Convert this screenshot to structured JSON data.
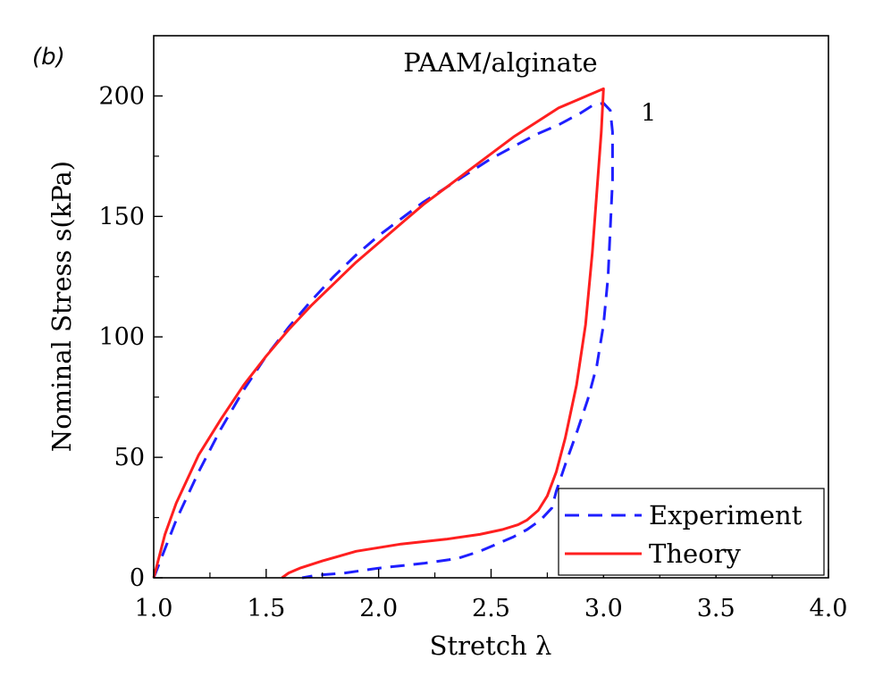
{
  "panel_label": "(b)",
  "chart_data": {
    "type": "line",
    "title": "PAAM/alginate",
    "xlabel": "Stretch λ",
    "ylabel": "Nominal Stress s(kPa)",
    "xlim": [
      1.0,
      4.0
    ],
    "ylim": [
      0,
      225
    ],
    "xticks": [
      1.0,
      1.5,
      2.0,
      2.5,
      3.0,
      3.5,
      4.0
    ],
    "xtick_labels": [
      "1.0",
      "1.5",
      "2.0",
      "2.5",
      "3.0",
      "3.5",
      "4.0"
    ],
    "yticks": [
      0,
      50,
      100,
      150,
      200
    ],
    "ytick_labels": [
      "0",
      "50",
      "100",
      "150",
      "200"
    ],
    "grid": false,
    "legend_position": "bottom-right",
    "annotations": [
      {
        "text": "1",
        "x": 3.2,
        "y": 193
      }
    ],
    "series": [
      {
        "name": "Experiment",
        "color": "#1f1fff",
        "style": "dashed",
        "x": [
          1.0,
          1.05,
          1.1,
          1.2,
          1.3,
          1.4,
          1.5,
          1.6,
          1.7,
          1.8,
          1.9,
          2.0,
          2.1,
          2.2,
          2.3,
          2.4,
          2.5,
          2.6,
          2.7,
          2.8,
          2.9,
          2.95,
          3.0,
          3.03,
          3.04,
          3.04,
          3.03,
          3.02,
          3.0,
          2.97,
          2.93,
          2.88,
          2.83,
          2.79,
          2.77,
          2.72,
          2.66,
          2.6,
          2.55,
          2.45,
          2.35,
          2.2,
          2.0,
          1.85,
          1.72,
          1.66
        ],
        "y": [
          0,
          12,
          24,
          44,
          62,
          78,
          92,
          104,
          115,
          125,
          134,
          142,
          149,
          156,
          162,
          168,
          174,
          179,
          184,
          188,
          193,
          196,
          197,
          194,
          185,
          165,
          145,
          125,
          105,
          88,
          74,
          60,
          47,
          36,
          29,
          24,
          20,
          17,
          15,
          11,
          8,
          6,
          4,
          2,
          1,
          0
        ]
      },
      {
        "name": "Theory",
        "color": "#ff1f1f",
        "style": "solid",
        "x": [
          1.0,
          1.05,
          1.1,
          1.2,
          1.3,
          1.4,
          1.5,
          1.6,
          1.7,
          1.8,
          1.9,
          2.0,
          2.1,
          2.2,
          2.3,
          2.4,
          2.5,
          2.6,
          2.7,
          2.8,
          2.9,
          3.0,
          2.99,
          2.97,
          2.95,
          2.92,
          2.88,
          2.83,
          2.79,
          2.75,
          2.71,
          2.66,
          2.62,
          2.55,
          2.45,
          2.3,
          2.1,
          1.9,
          1.75,
          1.65,
          1.6,
          1.57
        ],
        "y": [
          0,
          18,
          31,
          51,
          66,
          80,
          92,
          103,
          113,
          122,
          131,
          139,
          147,
          155,
          162,
          169,
          176,
          183,
          189,
          195,
          199,
          203,
          185,
          160,
          135,
          105,
          80,
          58,
          44,
          34,
          28,
          24,
          22,
          20,
          18,
          16,
          14,
          11,
          7,
          4,
          2,
          0
        ]
      }
    ]
  }
}
